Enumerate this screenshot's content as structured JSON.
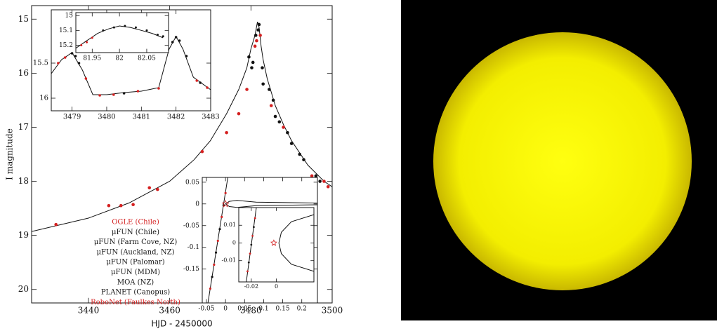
{
  "chart_data": [
    {
      "type": "scatter",
      "xlabel": "HJD - 2450000",
      "ylabel": "I magnitude",
      "xlim": [
        3426,
        3500
      ],
      "ylim": [
        20.25,
        14.75
      ],
      "xticks": [
        3440,
        3460,
        3480,
        3500
      ],
      "yticks": [
        15,
        16,
        17,
        18,
        19,
        20
      ],
      "series": [
        {
          "style": "line",
          "color": "#111111",
          "x": [
            3426,
            3440,
            3450,
            3460,
            3466,
            3470,
            3474,
            3477,
            3479,
            3480,
            3481,
            3481.6,
            3482,
            3482.5,
            3483,
            3484,
            3486,
            3488,
            3490,
            3494,
            3498,
            3500
          ],
          "values": [
            18.93,
            18.68,
            18.4,
            18.0,
            17.6,
            17.25,
            16.75,
            16.3,
            15.9,
            15.55,
            15.3,
            15.05,
            15.15,
            15.5,
            15.75,
            16.1,
            16.6,
            16.95,
            17.25,
            17.7,
            18.0,
            18.1
          ]
        },
        {
          "name": "OGLE (Chile)",
          "style": "points",
          "color": "#d42020",
          "x": [
            3432,
            3445,
            3448,
            3451,
            3455,
            3457,
            3468,
            3474,
            3477,
            3479,
            3481,
            3485,
            3488,
            3495,
            3498
          ],
          "values": [
            18.8,
            18.45,
            18.45,
            18.43,
            18.12,
            18.15,
            17.45,
            17.1,
            16.75,
            16.3,
            15.5,
            16.6,
            17.0,
            17.9,
            18.0
          ]
        },
        {
          "name": "μFUN (Chile)",
          "style": "points",
          "color": "#111111",
          "x": [
            3480.5,
            3481.2,
            3482,
            3483,
            3486,
            3490,
            3492,
            3496
          ],
          "values": [
            15.8,
            15.3,
            15.1,
            16.2,
            16.8,
            17.3,
            17.5,
            17.9
          ]
        },
        {
          "name": "μFUN (Farm Cove, NZ)",
          "style": "points",
          "color": "#111111",
          "x": [
            3479.5,
            3484.5
          ],
          "values": [
            15.7,
            16.3
          ]
        },
        {
          "name": "μFUN (Auckland, NZ)",
          "style": "points",
          "color": "#111111",
          "x": [
            3480.2,
            3485.5
          ],
          "values": [
            15.9,
            16.5
          ]
        },
        {
          "name": "μFUN (Palomar)",
          "style": "points",
          "color": "#111111",
          "x": [
            3487
          ],
          "values": [
            16.9
          ]
        },
        {
          "name": "μFUN (MDM)",
          "style": "points",
          "color": "#111111",
          "x": [
            3489
          ],
          "values": [
            17.1
          ]
        },
        {
          "name": "MOA (NZ)",
          "style": "points",
          "color": "#111111",
          "x": [
            3481.8,
            3493
          ],
          "values": [
            15.2,
            17.6
          ]
        },
        {
          "name": "PLANET (Canopus)",
          "style": "points",
          "color": "#111111",
          "x": [
            3482.8,
            3497
          ],
          "values": [
            15.9,
            18.0
          ]
        },
        {
          "name": "RoboNet (Faulkes North)",
          "style": "points",
          "color": "#d42020",
          "x": [
            3481.4,
            3482.3,
            3499
          ],
          "values": [
            15.4,
            15.3,
            18.1
          ]
        }
      ]
    },
    {
      "type": "scatter",
      "xlim": [
        3478.4,
        3483
      ],
      "ylim": [
        16.18,
        14.74
      ],
      "xticks": [
        3479,
        3480,
        3481,
        3482,
        3483
      ],
      "yticks": [
        15.5,
        16
      ],
      "series": [
        {
          "style": "line",
          "color": "#111111",
          "x": [
            3478.4,
            3478.7,
            3479,
            3479.3,
            3479.6,
            3480,
            3480.5,
            3481,
            3481.5,
            3481.8,
            3482,
            3482.2,
            3482.5,
            3483
          ],
          "values": [
            15.65,
            15.45,
            15.35,
            15.6,
            15.95,
            15.95,
            15.92,
            15.9,
            15.85,
            15.3,
            15.12,
            15.3,
            15.7,
            15.88
          ]
        },
        {
          "style": "points",
          "color": "#d42020",
          "x": [
            3478.6,
            3478.8,
            3479.4,
            3479.8,
            3480.2,
            3480.9,
            3481.5,
            3482.6,
            3482.9
          ],
          "values": [
            15.5,
            15.42,
            15.72,
            15.96,
            15.95,
            15.9,
            15.86,
            15.75,
            15.85
          ]
        },
        {
          "style": "points",
          "color": "#111111",
          "x": [
            3479,
            3479.1,
            3479.2,
            3480.5,
            3481.9,
            3482,
            3482.1,
            3482.3,
            3482.7
          ],
          "values": [
            15.36,
            15.4,
            15.5,
            15.93,
            15.2,
            15.13,
            15.18,
            15.4,
            15.78
          ]
        }
      ]
    },
    {
      "type": "scatter",
      "xlim": [
        81.92,
        82.09
      ],
      "ylim": [
        15.25,
        14.98
      ],
      "xticks": [
        81.95,
        82,
        82.05
      ],
      "yticks": [
        15,
        15.1,
        15.2
      ],
      "series": [
        {
          "style": "line",
          "color": "#111111",
          "x": [
            81.92,
            81.94,
            81.96,
            81.98,
            82,
            82.02,
            82.04,
            82.06,
            82.08
          ],
          "values": [
            15.22,
            15.17,
            15.12,
            15.09,
            15.07,
            15.08,
            15.1,
            15.12,
            15.15
          ]
        },
        {
          "style": "points",
          "color": "#d42020",
          "x": [
            81.93,
            81.94,
            81.95
          ],
          "values": [
            15.2,
            15.18,
            15.15
          ]
        },
        {
          "style": "points",
          "color": "#111111",
          "x": [
            81.97,
            81.99,
            82.01,
            82.03,
            82.05,
            82.07,
            82.08
          ],
          "values": [
            15.1,
            15.08,
            15.07,
            15.08,
            15.1,
            15.13,
            15.14
          ]
        }
      ]
    },
    {
      "type": "scatter",
      "xlim": [
        -0.061,
        0.241
      ],
      "ylim": [
        -0.228,
        0.061
      ],
      "xticks": [
        -0.05,
        0,
        0.05,
        0.1,
        0.15,
        0.2
      ],
      "yticks": [
        0.05,
        0,
        -0.05,
        -0.1,
        -0.15
      ],
      "series": [
        {
          "style": "line",
          "color": "#111111",
          "x": [
            -0.046,
            0.006
          ],
          "values": [
            -0.228,
            0.061
          ]
        },
        {
          "style": "line",
          "color": "#111111",
          "x": [
            0.241,
            0.08,
            0.03,
            0.01,
            0.0,
            0.01,
            0.03,
            0.08,
            0.241
          ],
          "values": [
            0.002,
            0.004,
            0.008,
            0.006,
            0,
            -0.006,
            -0.008,
            -0.004,
            -0.002
          ]
        },
        {
          "style": "points",
          "color": "#d42020",
          "x": [
            -0.04,
            -0.03,
            -0.02,
            -0.01,
            0.0
          ],
          "values": [
            -0.195,
            -0.14,
            -0.085,
            -0.03,
            0.025
          ]
        },
        {
          "style": "points",
          "color": "#111111",
          "x": [
            -0.035,
            -0.025,
            -0.015,
            -0.005
          ],
          "values": [
            -0.168,
            -0.112,
            -0.058,
            -0.003
          ]
        },
        {
          "style": "star",
          "color": "#d42020",
          "x": [
            0.0
          ],
          "values": [
            0.0
          ]
        }
      ]
    },
    {
      "type": "scatter",
      "xlim": [
        -0.03,
        0.03
      ],
      "ylim": [
        -0.022,
        0.02
      ],
      "xticks": [
        -0.02,
        0
      ],
      "yticks": [
        0.01,
        0,
        -0.01
      ],
      "series": [
        {
          "style": "line",
          "color": "#111111",
          "x": [
            -0.024,
            -0.016
          ],
          "values": [
            -0.022,
            0.02
          ]
        },
        {
          "style": "line",
          "color": "#111111",
          "x": [
            0.03,
            0.012,
            0.004,
            0.002,
            0.004,
            0.012,
            0.03
          ],
          "values": [
            0.016,
            0.012,
            0.006,
            0,
            -0.006,
            -0.012,
            -0.016
          ]
        },
        {
          "style": "points",
          "color": "#d42020",
          "x": [
            -0.023,
            -0.021,
            -0.019,
            -0.017
          ],
          "values": [
            -0.016,
            -0.006,
            0.004,
            0.014
          ]
        },
        {
          "style": "points",
          "color": "#111111",
          "x": [
            -0.022,
            -0.02,
            -0.018
          ],
          "values": [
            -0.011,
            -0.001,
            0.009
          ]
        },
        {
          "style": "star",
          "color": "#d42020",
          "x": [
            -0.002
          ],
          "values": [
            0.0
          ]
        }
      ]
    }
  ]
}
